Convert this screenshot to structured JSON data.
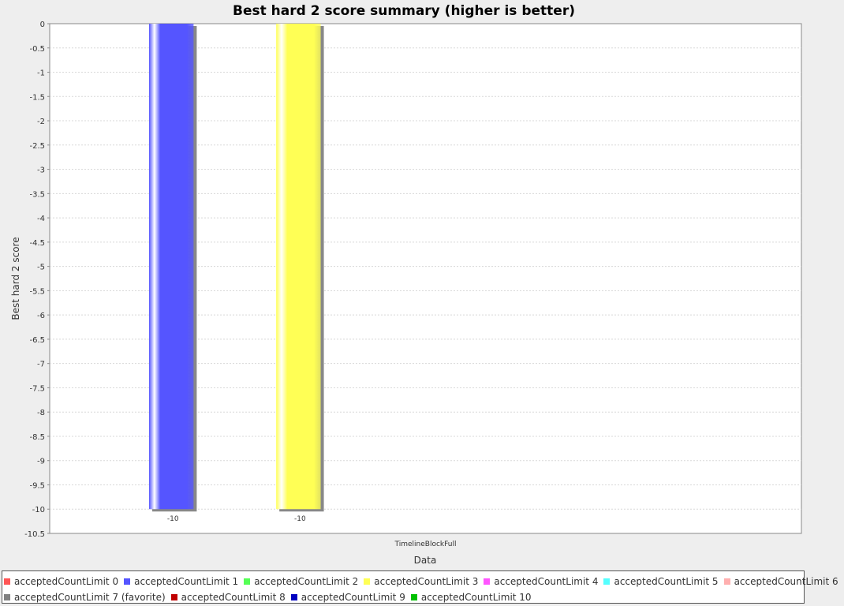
{
  "chart_data": {
    "type": "bar",
    "title": "Best hard 2 score summary (higher is better)",
    "xlabel": "Data",
    "ylabel": "Best hard 2 score",
    "categories": [
      "TimelineBlockFull"
    ],
    "ylim": [
      -10.5,
      0
    ],
    "ytick_step": 0.5,
    "grid": true,
    "legend_position": "bottom",
    "series": [
      {
        "name": "acceptedCountLimit 0",
        "color": "#ff5555",
        "values": [
          null
        ]
      },
      {
        "name": "acceptedCountLimit 1",
        "color": "#5555ff",
        "values": [
          -10
        ]
      },
      {
        "name": "acceptedCountLimit 2",
        "color": "#55ff55",
        "values": [
          null
        ]
      },
      {
        "name": "acceptedCountLimit 3",
        "color": "#ffff55",
        "values": [
          -10
        ]
      },
      {
        "name": "acceptedCountLimit 4",
        "color": "#ff55ff",
        "values": [
          null
        ]
      },
      {
        "name": "acceptedCountLimit 5",
        "color": "#55ffff",
        "values": [
          null
        ]
      },
      {
        "name": "acceptedCountLimit 6",
        "color": "#ffafaf",
        "values": [
          null
        ]
      },
      {
        "name": "acceptedCountLimit 7 (favorite)",
        "color": "#808080",
        "values": [
          null
        ]
      },
      {
        "name": "acceptedCountLimit 8",
        "color": "#c00000",
        "values": [
          null
        ]
      },
      {
        "name": "acceptedCountLimit 9",
        "color": "#0000c0",
        "values": [
          null
        ]
      },
      {
        "name": "acceptedCountLimit 10",
        "color": "#00c000",
        "values": [
          null
        ]
      }
    ],
    "data_labels": [
      "-10",
      "-10"
    ]
  }
}
